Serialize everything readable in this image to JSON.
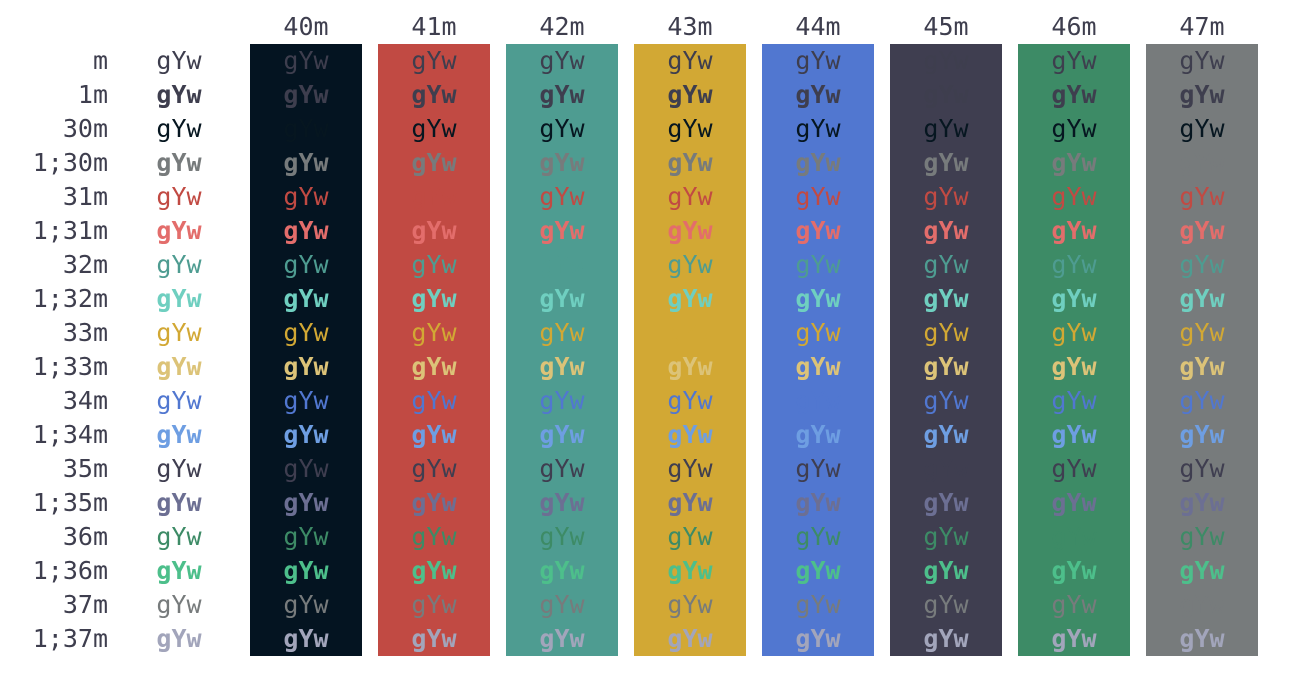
{
  "sample_text": "gYw",
  "columns": [
    "40m",
    "41m",
    "42m",
    "43m",
    "44m",
    "45m",
    "46m",
    "47m"
  ],
  "background_colors": [
    "#041421",
    "#c14a43",
    "#4e9c91",
    "#d2a834",
    "#5177d0",
    "#3f3e50",
    "#3d8b66",
    "#777b7c"
  ],
  "rows": [
    {
      "label": "m",
      "color": "#3e3e4e",
      "bold": false
    },
    {
      "label": "1m",
      "color": "#3e3e4e",
      "bold": true
    },
    {
      "label": "30m",
      "color": "#061620",
      "bold": false
    },
    {
      "label": "1;30m",
      "color": "#777b7c",
      "bold": true
    },
    {
      "label": "31m",
      "color": "#c14a43",
      "bold": false
    },
    {
      "label": "1;31m",
      "color": "#e36d6b",
      "bold": true
    },
    {
      "label": "32m",
      "color": "#4e9c91",
      "bold": false
    },
    {
      "label": "1;32m",
      "color": "#6fcfc0",
      "bold": true
    },
    {
      "label": "33m",
      "color": "#d2a834",
      "bold": false
    },
    {
      "label": "1;33m",
      "color": "#dcc378",
      "bold": true
    },
    {
      "label": "34m",
      "color": "#5177d0",
      "bold": false
    },
    {
      "label": "1;34m",
      "color": "#6e9ee2",
      "bold": true
    },
    {
      "label": "35m",
      "color": "#3f3e50",
      "bold": false
    },
    {
      "label": "1;35m",
      "color": "#6c6f93",
      "bold": true
    },
    {
      "label": "36m",
      "color": "#3d8b66",
      "bold": false
    },
    {
      "label": "1;36m",
      "color": "#4dbf8b",
      "bold": true
    },
    {
      "label": "37m",
      "color": "#777b7c",
      "bold": false
    },
    {
      "label": "1;37m",
      "color": "#a2a5bb",
      "bold": true
    }
  ]
}
